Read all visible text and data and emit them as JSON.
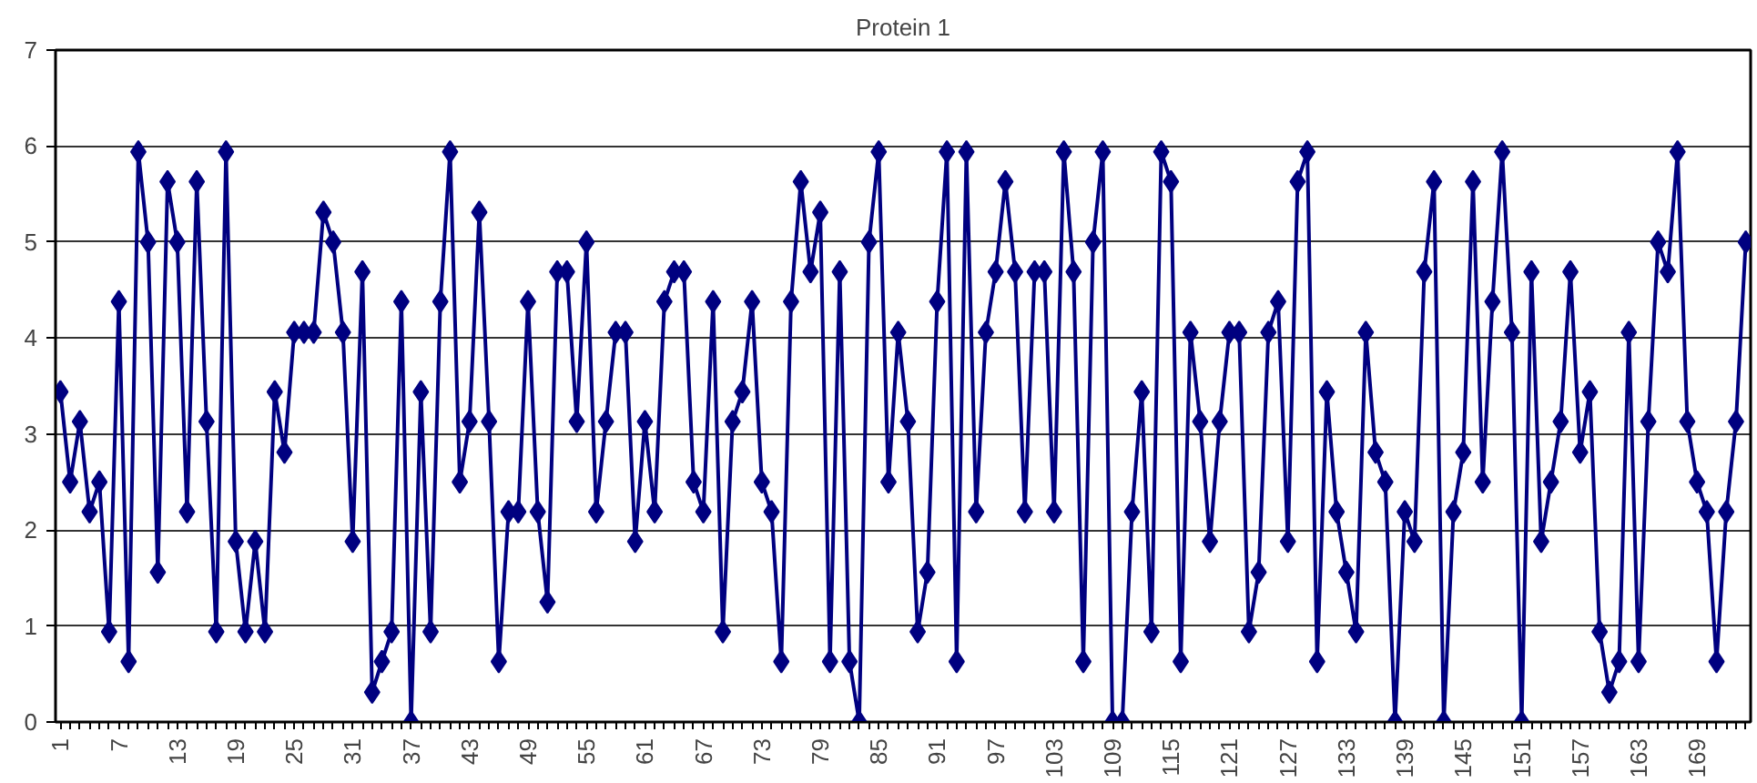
{
  "chart_data": {
    "type": "line",
    "title": "Protein 1",
    "categories": [
      "1",
      null,
      null,
      null,
      null,
      null,
      "7",
      null,
      null,
      null,
      null,
      null,
      "13",
      null,
      null,
      null,
      null,
      null,
      "19",
      null,
      null,
      null,
      null,
      null,
      "25",
      null,
      null,
      null,
      null,
      null,
      "31",
      null,
      null,
      null,
      null,
      null,
      "37",
      null,
      null,
      null,
      null,
      null,
      "43",
      null,
      null,
      null,
      null,
      null,
      "49",
      null,
      null,
      null,
      null,
      null,
      "55",
      null,
      null,
      null,
      null,
      null,
      "61",
      null,
      null,
      null,
      null,
      null,
      "67",
      null,
      null,
      null,
      null,
      null,
      "73",
      null,
      null,
      null,
      null,
      null,
      "79",
      null,
      null,
      null,
      null,
      null,
      "85",
      null,
      null,
      null,
      null,
      null,
      "91",
      null,
      null,
      null,
      null,
      null,
      "97",
      null,
      null,
      null,
      null,
      null,
      "103",
      null,
      null,
      null,
      null,
      null,
      "109",
      null,
      null,
      null,
      null,
      null,
      "115",
      null,
      null,
      null,
      null,
      null,
      "121",
      null,
      null,
      null,
      null,
      null,
      "127",
      null,
      null,
      null,
      null,
      null,
      "133",
      null,
      null,
      null,
      null,
      null,
      "139",
      null,
      null,
      null,
      null,
      null,
      "145",
      null,
      null,
      null,
      null,
      null,
      "151",
      null,
      null,
      null,
      null,
      null,
      "157",
      null,
      null,
      null,
      null,
      null,
      "163",
      null,
      null,
      null,
      null,
      null,
      "169",
      null,
      null,
      null,
      null,
      null
    ],
    "series": [
      {
        "color": "#000080",
        "values": [
          3.44,
          2.5,
          3.13,
          2.19,
          2.5,
          0.94,
          4.38,
          0.63,
          5.94,
          5.0,
          1.56,
          5.63,
          5.0,
          2.19,
          5.63,
          3.13,
          0.94,
          5.94,
          1.88,
          0.94,
          1.88,
          0.94,
          3.44,
          2.81,
          4.06,
          4.06,
          4.06,
          5.31,
          5.0,
          4.06,
          1.88,
          4.69,
          0.31,
          0.63,
          0.94,
          4.38,
          0,
          3.44,
          0.94,
          4.38,
          5.94,
          2.5,
          3.13,
          5.31,
          3.13,
          0.63,
          2.19,
          2.19,
          4.38,
          2.19,
          1.25,
          4.69,
          4.69,
          3.13,
          5.0,
          2.19,
          3.13,
          4.06,
          4.06,
          1.88,
          3.13,
          2.19,
          4.38,
          4.69,
          4.69,
          2.5,
          2.19,
          4.38,
          0.94,
          3.13,
          3.44,
          4.38,
          2.5,
          2.19,
          0.63,
          4.38,
          5.63,
          4.69,
          5.31,
          0.63,
          4.69,
          0.63,
          0,
          5.0,
          5.94,
          2.5,
          4.06,
          3.13,
          0.94,
          1.56,
          4.38,
          5.94,
          0.63,
          5.94,
          2.19,
          4.06,
          4.69,
          5.63,
          4.69,
          2.19,
          4.69,
          4.69,
          2.19,
          5.94,
          4.69,
          0.63,
          5.0,
          5.94,
          0,
          0,
          2.19,
          3.44,
          0.94,
          5.94,
          5.63,
          0.63,
          4.06,
          3.13,
          1.88,
          3.13,
          4.06,
          4.06,
          0.94,
          1.56,
          4.06,
          4.38,
          1.88,
          5.63,
          5.94,
          0.63,
          3.44,
          2.19,
          1.56,
          0.94,
          4.06,
          2.81,
          2.5,
          0,
          2.19,
          1.88,
          4.69,
          5.63,
          0,
          2.19,
          2.81,
          5.63,
          2.5,
          4.38,
          5.94,
          4.06,
          0,
          4.69,
          1.88,
          2.5,
          3.13,
          4.69,
          2.81,
          3.44,
          0.94,
          0.31,
          0.63,
          4.06,
          0.63,
          3.13,
          5.0,
          4.69,
          5.94,
          3.13,
          2.5,
          2.19,
          0.63,
          2.19,
          3.13,
          5.0
        ]
      }
    ],
    "ylim": [
      0,
      7
    ],
    "yticks": [
      0,
      1,
      2,
      3,
      4,
      5,
      6,
      7
    ],
    "grid": "y",
    "marker": "diamond",
    "line_style": "solid"
  }
}
